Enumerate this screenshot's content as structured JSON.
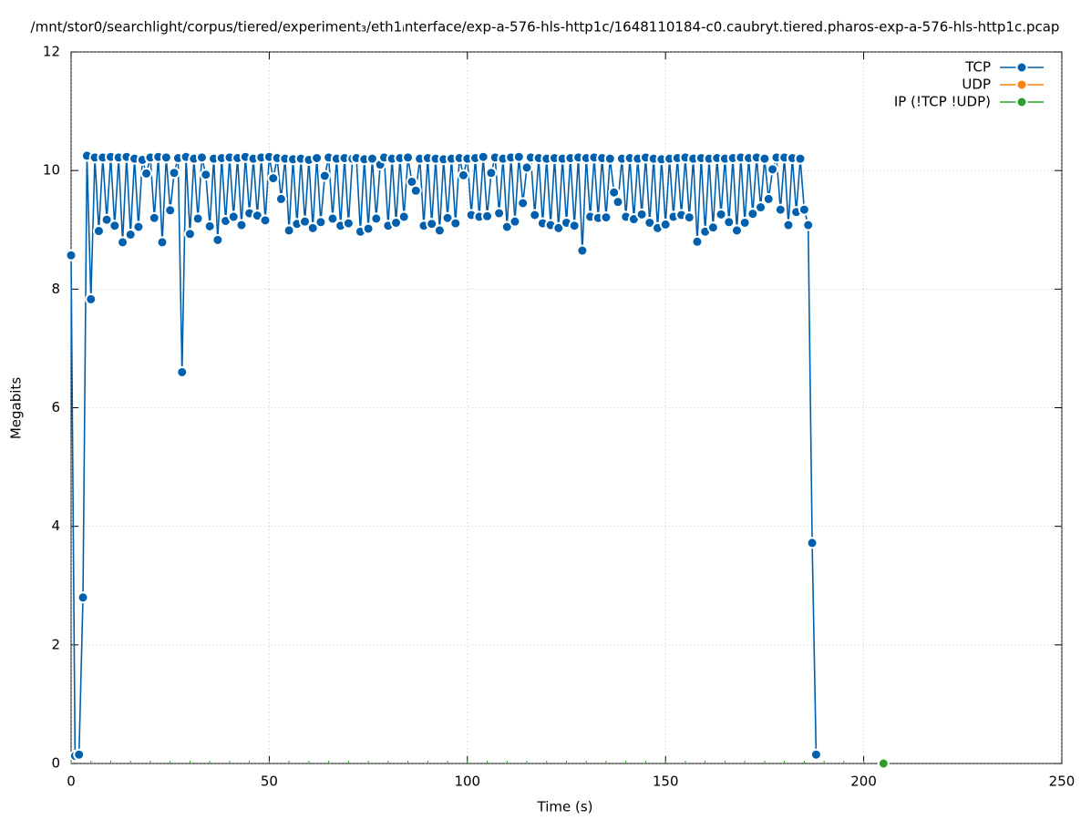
{
  "chart_data": {
    "type": "line",
    "title": "/mnt/stor0/searchlight/corpus/tiered/experiment₃/eth1ᵢnterface/exp-a-576-hls-http1c/1648110184-c0.caubryt.tiered.pharos-exp-a-576-hls-http1c.pcap",
    "x_label": "Time (s)",
    "y_label": "Megabits",
    "xlim": [
      0,
      250
    ],
    "xticks": [
      0,
      50,
      100,
      150,
      200,
      250
    ],
    "ylim": [
      0,
      12
    ],
    "yticks": [
      0,
      2,
      4,
      6,
      8,
      10,
      12
    ],
    "grid": true,
    "legend": "top-right",
    "series": [
      {
        "name": "TCP",
        "color": "#0060ad",
        "x": [
          0,
          1,
          2,
          3,
          4,
          5,
          6,
          7,
          8,
          9,
          10,
          11,
          12,
          13,
          14,
          15,
          16,
          17,
          18,
          19,
          20,
          21,
          22,
          23,
          24,
          25,
          26,
          27,
          28,
          29,
          30,
          31,
          32,
          33,
          34,
          35,
          36,
          37,
          38,
          39,
          40,
          41,
          42,
          43,
          44,
          45,
          46,
          47,
          48,
          49,
          50,
          51,
          52,
          53,
          54,
          55,
          56,
          57,
          58,
          59,
          60,
          61,
          62,
          63,
          64,
          65,
          66,
          67,
          68,
          69,
          70,
          71,
          72,
          73,
          74,
          75,
          76,
          77,
          78,
          79,
          80,
          81,
          82,
          83,
          84,
          85,
          86,
          87,
          88,
          89,
          90,
          91,
          92,
          93,
          94,
          95,
          96,
          97,
          98,
          99,
          100,
          101,
          102,
          103,
          104,
          105,
          106,
          107,
          108,
          109,
          110,
          111,
          112,
          113,
          114,
          115,
          116,
          117,
          118,
          119,
          120,
          121,
          122,
          123,
          124,
          125,
          126,
          127,
          128,
          129,
          130,
          131,
          132,
          133,
          134,
          135,
          136,
          137,
          138,
          139,
          140,
          141,
          142,
          143,
          144,
          145,
          146,
          147,
          148,
          149,
          150,
          151,
          152,
          153,
          154,
          155,
          156,
          157,
          158,
          159,
          160,
          161,
          162,
          163,
          164,
          165,
          166,
          167,
          168,
          169,
          170,
          171,
          172,
          173,
          174,
          175,
          176,
          177,
          178,
          179,
          180,
          181,
          182,
          183,
          184,
          185,
          186,
          187,
          188
        ],
        "values": [
          8.57,
          0.13,
          0.15,
          2.8,
          10.25,
          7.83,
          10.22,
          8.98,
          10.22,
          9.17,
          10.23,
          9.07,
          10.22,
          8.79,
          10.23,
          8.92,
          10.2,
          9.05,
          10.18,
          9.95,
          10.22,
          9.2,
          10.23,
          8.79,
          10.22,
          9.33,
          9.96,
          10.21,
          6.6,
          10.23,
          8.93,
          10.2,
          9.19,
          10.22,
          9.93,
          9.06,
          10.2,
          8.83,
          10.21,
          9.15,
          10.22,
          9.22,
          10.21,
          9.08,
          10.23,
          9.28,
          10.2,
          9.24,
          10.22,
          9.16,
          10.23,
          9.87,
          10.21,
          9.52,
          10.2,
          8.99,
          10.19,
          9.1,
          10.2,
          9.14,
          10.18,
          9.03,
          10.21,
          9.13,
          9.91,
          10.22,
          9.19,
          10.2,
          9.07,
          10.21,
          9.11,
          10.2,
          10.21,
          8.97,
          10.19,
          9.02,
          10.2,
          9.19,
          10.1,
          10.22,
          9.07,
          10.2,
          9.12,
          10.21,
          9.22,
          10.22,
          9.81,
          9.66,
          10.2,
          9.07,
          10.21,
          9.1,
          10.2,
          8.99,
          10.19,
          9.2,
          10.2,
          9.11,
          10.21,
          9.92,
          10.2,
          9.25,
          10.21,
          9.22,
          10.23,
          9.23,
          9.96,
          10.22,
          9.28,
          10.2,
          9.05,
          10.22,
          9.14,
          10.23,
          9.45,
          10.05,
          10.22,
          9.25,
          10.21,
          9.11,
          10.2,
          9.08,
          10.21,
          9.03,
          10.2,
          9.12,
          10.21,
          9.07,
          10.22,
          8.65,
          10.21,
          9.22,
          10.22,
          9.2,
          10.21,
          9.21,
          10.2,
          9.63,
          9.47,
          10.2,
          9.22,
          10.21,
          9.18,
          10.2,
          9.26,
          10.22,
          9.12,
          10.2,
          9.03,
          10.19,
          9.09,
          10.2,
          9.22,
          10.21,
          9.25,
          10.22,
          9.21,
          10.2,
          8.8,
          10.21,
          8.97,
          10.2,
          9.04,
          10.21,
          9.26,
          10.2,
          9.13,
          10.21,
          8.99,
          10.22,
          9.12,
          10.21,
          9.27,
          10.22,
          9.38,
          10.2,
          9.52,
          10.02,
          10.22,
          9.34,
          10.22,
          9.08,
          10.21,
          9.3,
          10.2,
          9.34,
          9.08,
          3.72,
          0.15
        ]
      },
      {
        "name": "UDP",
        "color": "#ff7f0e",
        "x": [],
        "values": []
      },
      {
        "name": "IP (!TCP  !UDP)",
        "color": "#2ca02c",
        "x": [
          0,
          5,
          10,
          15,
          20,
          25,
          30,
          35,
          40,
          45,
          50,
          55,
          60,
          65,
          70,
          75,
          80,
          85,
          90,
          95,
          100,
          105,
          110,
          115,
          120,
          125,
          130,
          135,
          140,
          145,
          150,
          155,
          160,
          165,
          170,
          175,
          180,
          185,
          190,
          195,
          200,
          205
        ],
        "values": [
          0,
          0,
          0,
          0,
          0,
          0,
          0,
          0,
          0,
          0,
          0,
          0,
          0,
          0,
          0,
          0,
          0,
          0,
          0,
          0,
          0,
          0,
          0,
          0,
          0,
          0,
          0,
          0,
          0,
          0,
          0,
          0,
          0,
          0,
          0,
          0,
          0,
          0,
          0,
          0,
          0,
          0
        ]
      }
    ]
  }
}
